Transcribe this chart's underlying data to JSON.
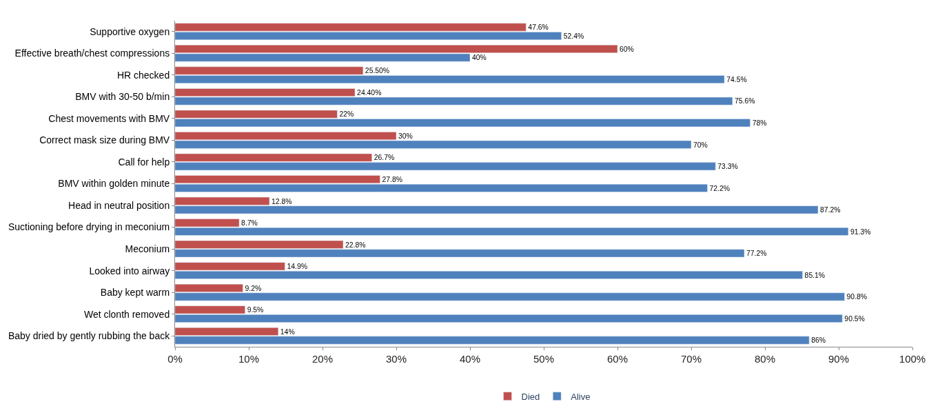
{
  "chart_data": {
    "type": "bar",
    "orientation": "horizontal",
    "categories": [
      "Supportive oxygen",
      "Effective breath/chest compressions",
      "HR checked",
      "BMV with 30-50 b/min",
      "Chest movements with BMV",
      "Correct mask size during BMV",
      "Call for help",
      "BMV within golden minute",
      "Head in neutral position",
      "Suctioning before drying in meconium",
      "Meconium",
      "Looked into airway",
      "Baby kept warm",
      "Wet clonth removed",
      "Baby dried by gently rubbing the back"
    ],
    "series": [
      {
        "name": "Died",
        "color": "#c0504d",
        "values": [
          47.6,
          60,
          25.5,
          24.4,
          22,
          30,
          26.7,
          27.8,
          12.8,
          8.7,
          22.8,
          14.9,
          9.2,
          9.5,
          14
        ],
        "value_labels": [
          "47.6%",
          "60%",
          "25.50%",
          "24.40%",
          "22%",
          "30%",
          "26.7%",
          "27.8%",
          "12.8%",
          "8.7%",
          "22.8%",
          "14.9%",
          "9.2%",
          "9.5%",
          "14%"
        ]
      },
      {
        "name": "Alive",
        "color": "#4f81bd",
        "values": [
          52.4,
          40,
          74.5,
          75.6,
          78,
          70,
          73.3,
          72.2,
          87.2,
          91.3,
          77.2,
          85.1,
          90.8,
          90.5,
          86
        ],
        "value_labels": [
          "52.4%",
          "40%",
          "74.5%",
          "75.6%",
          "78%",
          "70%",
          "73.3%",
          "72.2%",
          "87.2%",
          "91.3%",
          "77.2%",
          "85.1%",
          "90.8%",
          "90.5%",
          "86%"
        ]
      }
    ],
    "xlim": [
      0,
      100
    ],
    "xticks": [
      {
        "value": 0,
        "label": "0%"
      },
      {
        "value": 10,
        "label": "10%"
      },
      {
        "value": 20,
        "label": "20%"
      },
      {
        "value": 30,
        "label": "30%"
      },
      {
        "value": 40,
        "label": "40%"
      },
      {
        "value": 50,
        "label": "50%"
      },
      {
        "value": 60,
        "label": "60%"
      },
      {
        "value": 70,
        "label": "70%"
      },
      {
        "value": 80,
        "label": "80%"
      },
      {
        "value": 90,
        "label": "90%"
      },
      {
        "value": 100,
        "label": "100%"
      }
    ],
    "grid": false,
    "legend": "bottom"
  }
}
